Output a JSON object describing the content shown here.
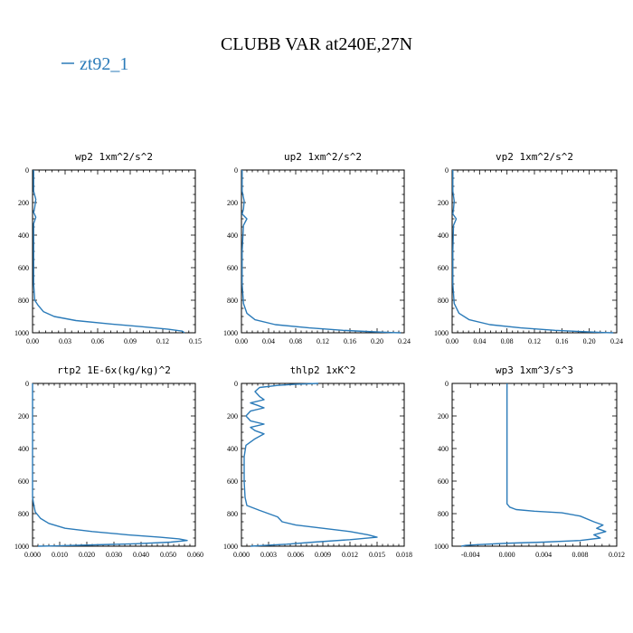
{
  "title": "CLUBB VAR at240E,27N",
  "legend": {
    "label": "zt92_1",
    "color": "#2b7bb9"
  },
  "chart_data": [
    {
      "type": "line",
      "title": "wp2  1xm^2/s^2",
      "xlim": [
        0,
        0.15
      ],
      "ylim": [
        1000,
        0
      ],
      "xticks": [
        "0.00",
        "0.03",
        "0.06",
        "0.09",
        "0.12",
        "0.15"
      ],
      "yticks": [
        "0",
        "200",
        "400",
        "600",
        "800",
        "1000"
      ],
      "series": [
        {
          "name": "zt92_1",
          "points": [
            [
              0.001,
              0
            ],
            [
              0.001,
              130
            ],
            [
              0.003,
              180
            ],
            [
              0.002,
              230
            ],
            [
              0.001,
              260
            ],
            [
              0.003,
              290
            ],
            [
              0.001,
              330
            ],
            [
              0.001,
              500
            ],
            [
              0.001,
              700
            ],
            [
              0.002,
              800
            ],
            [
              0.005,
              830
            ],
            [
              0.01,
              870
            ],
            [
              0.02,
              900
            ],
            [
              0.04,
              925
            ],
            [
              0.07,
              945
            ],
            [
              0.1,
              962
            ],
            [
              0.125,
              978
            ],
            [
              0.138,
              990
            ],
            [
              0.14,
              1000
            ]
          ]
        }
      ]
    },
    {
      "type": "line",
      "title": "up2  1xm^2/s^2",
      "xlim": [
        0,
        0.24
      ],
      "ylim": [
        1000,
        0
      ],
      "xticks": [
        "0.00",
        "0.04",
        "0.08",
        "0.12",
        "0.16",
        "0.20",
        "0.24"
      ],
      "yticks": [
        "0",
        "200",
        "400",
        "600",
        "800",
        "1000"
      ],
      "series": [
        {
          "name": "zt92_1",
          "points": [
            [
              0.001,
              0
            ],
            [
              0.001,
              130
            ],
            [
              0.004,
              190
            ],
            [
              0.003,
              240
            ],
            [
              0.001,
              270
            ],
            [
              0.008,
              300
            ],
            [
              0.003,
              340
            ],
            [
              0.001,
              500
            ],
            [
              0.001,
              700
            ],
            [
              0.003,
              820
            ],
            [
              0.008,
              880
            ],
            [
              0.02,
              920
            ],
            [
              0.05,
              950
            ],
            [
              0.1,
              970
            ],
            [
              0.15,
              985
            ],
            [
              0.19,
              993
            ],
            [
              0.22,
              998
            ],
            [
              0.235,
              1000
            ]
          ]
        }
      ]
    },
    {
      "type": "line",
      "title": "vp2  1xm^2/s^2",
      "xlim": [
        0,
        0.24
      ],
      "ylim": [
        1000,
        0
      ],
      "xticks": [
        "0.00",
        "0.04",
        "0.08",
        "0.12",
        "0.16",
        "0.20",
        "0.24"
      ],
      "yticks": [
        "0",
        "200",
        "400",
        "600",
        "800",
        "1000"
      ],
      "series": [
        {
          "name": "zt92_1",
          "points": [
            [
              0.001,
              0
            ],
            [
              0.001,
              130
            ],
            [
              0.003,
              190
            ],
            [
              0.002,
              240
            ],
            [
              0.001,
              270
            ],
            [
              0.006,
              300
            ],
            [
              0.002,
              340
            ],
            [
              0.001,
              500
            ],
            [
              0.001,
              700
            ],
            [
              0.003,
              820
            ],
            [
              0.01,
              880
            ],
            [
              0.025,
              920
            ],
            [
              0.055,
              950
            ],
            [
              0.1,
              970
            ],
            [
              0.15,
              985
            ],
            [
              0.19,
              993
            ],
            [
              0.22,
              998
            ],
            [
              0.235,
              1000
            ]
          ]
        }
      ]
    },
    {
      "type": "line",
      "title": "rtp2  1E-6x(kg/kg)^2",
      "xlim": [
        0,
        0.06
      ],
      "ylim": [
        1000,
        0
      ],
      "xticks": [
        "0.000",
        "0.010",
        "0.020",
        "0.030",
        "0.040",
        "0.050",
        "0.060"
      ],
      "yticks": [
        "0",
        "200",
        "400",
        "600",
        "800",
        "1000"
      ],
      "series": [
        {
          "name": "zt92_1",
          "points": [
            [
              0.0,
              0
            ],
            [
              0.0,
              500
            ],
            [
              0.0,
              700
            ],
            [
              0.0005,
              750
            ],
            [
              0.001,
              790
            ],
            [
              0.003,
              830
            ],
            [
              0.006,
              860
            ],
            [
              0.012,
              890
            ],
            [
              0.022,
              910
            ],
            [
              0.035,
              930
            ],
            [
              0.047,
              945
            ],
            [
              0.054,
              955
            ],
            [
              0.057,
              965
            ],
            [
              0.051,
              975
            ],
            [
              0.038,
              985
            ],
            [
              0.02,
              993
            ],
            [
              0.008,
              998
            ],
            [
              0.002,
              1000
            ]
          ]
        }
      ]
    },
    {
      "type": "line",
      "title": "thlp2  1xK^2",
      "xlim": [
        0,
        0.018
      ],
      "ylim": [
        1000,
        0
      ],
      "xticks": [
        "0.000",
        "0.003",
        "0.006",
        "0.009",
        "0.012",
        "0.015",
        "0.018"
      ],
      "yticks": [
        "0",
        "200",
        "400",
        "600",
        "800",
        "1000"
      ],
      "series": [
        {
          "name": "zt92_1",
          "points": [
            [
              0.0085,
              0
            ],
            [
              0.006,
              5
            ],
            [
              0.004,
              12
            ],
            [
              0.002,
              25
            ],
            [
              0.0015,
              50
            ],
            [
              0.002,
              80
            ],
            [
              0.0025,
              100
            ],
            [
              0.001,
              120
            ],
            [
              0.0018,
              135
            ],
            [
              0.0025,
              150
            ],
            [
              0.001,
              170
            ],
            [
              0.0005,
              200
            ],
            [
              0.001,
              230
            ],
            [
              0.0025,
              250
            ],
            [
              0.001,
              270
            ],
            [
              0.0015,
              290
            ],
            [
              0.0025,
              310
            ],
            [
              0.0015,
              340
            ],
            [
              0.0005,
              380
            ],
            [
              0.0003,
              450
            ],
            [
              0.0003,
              600
            ],
            [
              0.0004,
              700
            ],
            [
              0.0006,
              750
            ],
            [
              0.002,
              780
            ],
            [
              0.004,
              820
            ],
            [
              0.0045,
              850
            ],
            [
              0.006,
              870
            ],
            [
              0.009,
              890
            ],
            [
              0.012,
              910
            ],
            [
              0.014,
              930
            ],
            [
              0.015,
              945
            ],
            [
              0.012,
              960
            ],
            [
              0.008,
              975
            ],
            [
              0.005,
              988
            ],
            [
              0.002,
              997
            ],
            [
              0.001,
              1000
            ]
          ]
        }
      ]
    },
    {
      "type": "line",
      "title": "wp3  1xm^3/s^3",
      "xlim": [
        -0.006,
        0.012
      ],
      "ylim": [
        1000,
        0
      ],
      "xticks": [
        "-0.004",
        "0.000",
        "0.004",
        "0.008",
        "0.012"
      ],
      "xtick_values": [
        -0.004,
        0.0,
        0.004,
        0.008,
        0.012
      ],
      "yticks": [
        "0",
        "200",
        "400",
        "600",
        "800",
        "1000"
      ],
      "series": [
        {
          "name": "zt92_1",
          "points": [
            [
              0.0,
              0
            ],
            [
              0.0,
              200
            ],
            [
              0.0,
              400
            ],
            [
              0.0,
              600
            ],
            [
              0.0,
              740
            ],
            [
              0.0003,
              760
            ],
            [
              0.001,
              775
            ],
            [
              0.003,
              785
            ],
            [
              0.006,
              795
            ],
            [
              0.008,
              815
            ],
            [
              0.0095,
              850
            ],
            [
              0.0105,
              870
            ],
            [
              0.0098,
              890
            ],
            [
              0.0108,
              910
            ],
            [
              0.0095,
              930
            ],
            [
              0.0102,
              950
            ],
            [
              0.008,
              965
            ],
            [
              0.004,
              975
            ],
            [
              0.0,
              982
            ],
            [
              -0.003,
              990
            ],
            [
              -0.0045,
              995
            ],
            [
              -0.005,
              1000
            ]
          ]
        }
      ]
    }
  ]
}
